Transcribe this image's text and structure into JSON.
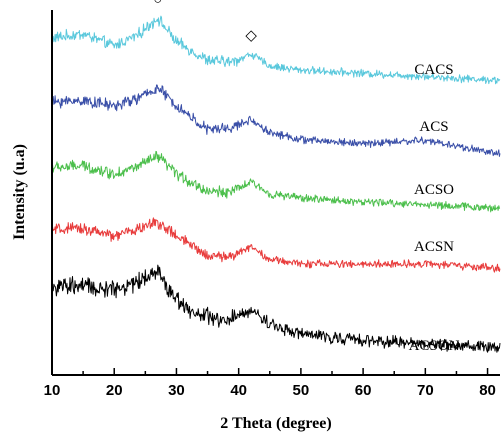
{
  "chart_data": {
    "type": "line",
    "xlabel": "2 Theta (degree)",
    "ylabel": "Intensity (u.a)",
    "xlim": [
      10,
      82
    ],
    "xticks": [
      10,
      20,
      30,
      40,
      50,
      60,
      70,
      80
    ],
    "yticks_shown": false,
    "grid": false,
    "legend": "labels placed beside each curve at right",
    "series": [
      {
        "name": "CACS",
        "color": "#5ac8dc",
        "points": [
          [
            10,
            3.9
          ],
          [
            15,
            3.95
          ],
          [
            20,
            3.8
          ],
          [
            24,
            3.95
          ],
          [
            27,
            4.15
          ],
          [
            30,
            3.85
          ],
          [
            35,
            3.62
          ],
          [
            39,
            3.6
          ],
          [
            42,
            3.7
          ],
          [
            45,
            3.55
          ],
          [
            50,
            3.5
          ],
          [
            60,
            3.46
          ],
          [
            70,
            3.42
          ],
          [
            82,
            3.37
          ]
        ]
      },
      {
        "name": "ACS",
        "color": "#3a4fa8",
        "points": [
          [
            10,
            3.1
          ],
          [
            15,
            3.12
          ],
          [
            20,
            3.05
          ],
          [
            24,
            3.15
          ],
          [
            27,
            3.28
          ],
          [
            30,
            3.05
          ],
          [
            35,
            2.75
          ],
          [
            39,
            2.78
          ],
          [
            42,
            2.88
          ],
          [
            45,
            2.72
          ],
          [
            50,
            2.63
          ],
          [
            60,
            2.58
          ],
          [
            70,
            2.62
          ],
          [
            82,
            2.45
          ]
        ]
      },
      {
        "name": "ACSO",
        "color": "#4cbf4c",
        "points": [
          [
            10,
            2.28
          ],
          [
            15,
            2.3
          ],
          [
            20,
            2.2
          ],
          [
            24,
            2.3
          ],
          [
            27,
            2.42
          ],
          [
            30,
            2.2
          ],
          [
            35,
            1.98
          ],
          [
            39,
            1.98
          ],
          [
            42,
            2.1
          ],
          [
            45,
            1.95
          ],
          [
            50,
            1.9
          ],
          [
            60,
            1.85
          ],
          [
            70,
            1.82
          ],
          [
            82,
            1.77
          ]
        ]
      },
      {
        "name": "ACSN",
        "color": "#e83c3c",
        "points": [
          [
            10,
            1.5
          ],
          [
            15,
            1.52
          ],
          [
            20,
            1.42
          ],
          [
            24,
            1.52
          ],
          [
            27,
            1.6
          ],
          [
            30,
            1.42
          ],
          [
            35,
            1.18
          ],
          [
            39,
            1.17
          ],
          [
            42,
            1.3
          ],
          [
            45,
            1.13
          ],
          [
            50,
            1.08
          ],
          [
            60,
            1.07
          ],
          [
            70,
            1.08
          ],
          [
            82,
            1.02
          ]
        ]
      },
      {
        "name": "ACSON",
        "color": "#000000",
        "points": [
          [
            10,
            0.78
          ],
          [
            15,
            0.8
          ],
          [
            18,
            0.75
          ],
          [
            22,
            0.8
          ],
          [
            25,
            0.9
          ],
          [
            27,
            1.0
          ],
          [
            29,
            0.72
          ],
          [
            33,
            0.45
          ],
          [
            38,
            0.35
          ],
          [
            42,
            0.5
          ],
          [
            45,
            0.33
          ],
          [
            50,
            0.2
          ],
          [
            60,
            0.12
          ],
          [
            70,
            0.08
          ],
          [
            82,
            0.03
          ]
        ]
      }
    ],
    "annotations": [
      {
        "symbol": "○",
        "x": 27,
        "series": "CACS"
      },
      {
        "symbol": "◇",
        "x": 42,
        "series": "CACS"
      }
    ]
  }
}
